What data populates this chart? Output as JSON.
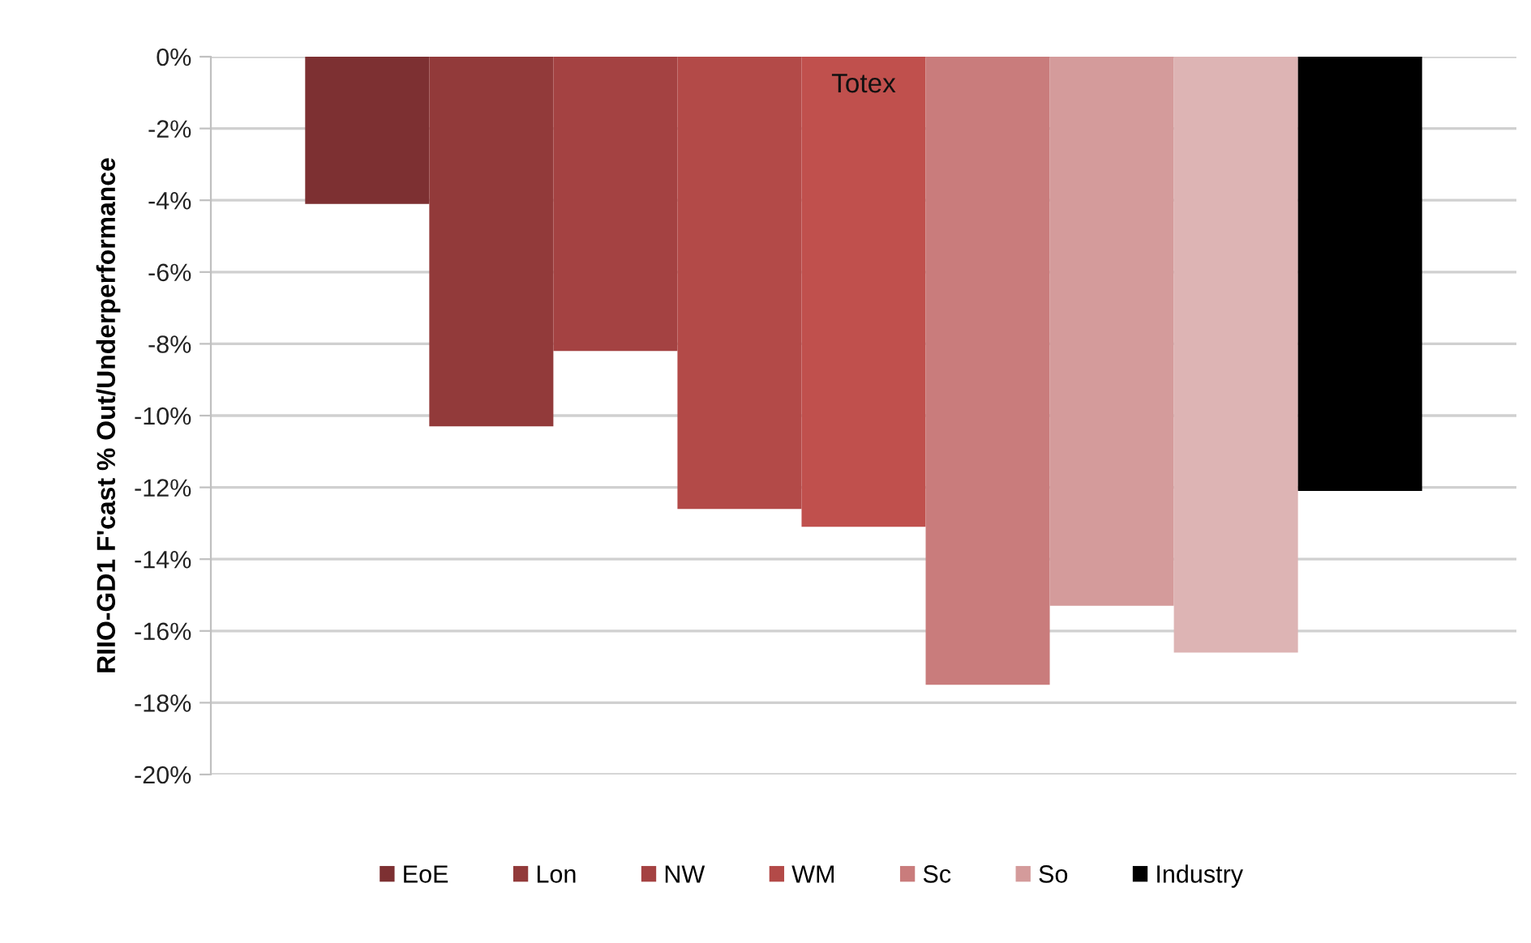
{
  "chart_data": {
    "type": "bar",
    "title": "Totex",
    "ylabel": "RIIO-GD1 F'cast % Out/Underperformance",
    "categories": [
      null
    ],
    "series": [
      {
        "name": "EoE",
        "color": "#7d3032",
        "values": [
          -4.1
        ]
      },
      {
        "name": "Lon",
        "color": "#923a3a",
        "values": [
          -10.3
        ]
      },
      {
        "name": "NW",
        "color": "#a44242",
        "values": [
          -8.2
        ]
      },
      {
        "name": "WM",
        "color": "#b34a48",
        "values": [
          -12.6
        ]
      },
      {
        "color": "#c0504d",
        "values": [
          -13.1
        ]
      },
      {
        "name": "Sc",
        "color": "#c97c7c",
        "values": [
          -17.5
        ]
      },
      {
        "name": "So",
        "color": "#d49b9b",
        "values": [
          -15.3
        ]
      },
      {
        "color": "#ddb4b4",
        "values": [
          -16.6
        ]
      },
      {
        "name": "Industry",
        "color": "#000000",
        "values": [
          -12.1
        ]
      }
    ],
    "ylim": [
      -20,
      0
    ],
    "yticks": [
      {
        "value": 0,
        "label": "0%"
      },
      {
        "value": -2,
        "label": "-2%"
      },
      {
        "value": -4,
        "label": "-4%"
      },
      {
        "value": -6,
        "label": "-6%"
      },
      {
        "value": -8,
        "label": "-8%"
      },
      {
        "value": -10,
        "label": "-10%"
      },
      {
        "value": -12,
        "label": "-12%"
      },
      {
        "value": -14,
        "label": "-14%"
      },
      {
        "value": -16,
        "label": "-16%"
      },
      {
        "value": -18,
        "label": "-18%"
      },
      {
        "value": -20,
        "label": "-20%"
      }
    ],
    "grid": "y",
    "legend": "bottom"
  }
}
